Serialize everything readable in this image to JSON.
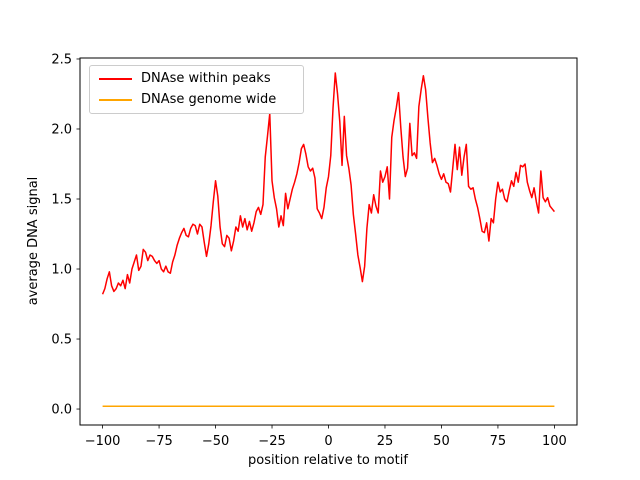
{
  "figure": {
    "background": "#ffffff",
    "axes_edge_color": "#000000",
    "legend_border_color": "#cccccc"
  },
  "chart_data": {
    "type": "line",
    "title": "",
    "xlabel": "position relative to motif",
    "ylabel": "average DNA signal",
    "xlim": [
      -110,
      110
    ],
    "ylim": [
      -0.114,
      2.507
    ],
    "grid": false,
    "legend_position": "upper-left",
    "xticks": [
      -100,
      -75,
      -50,
      -25,
      0,
      25,
      50,
      75,
      100
    ],
    "xtick_labels": [
      "−100",
      "−75",
      "−50",
      "−25",
      "0",
      "25",
      "50",
      "75",
      "100"
    ],
    "yticks": [
      0.0,
      0.5,
      1.0,
      1.5,
      2.0,
      2.5
    ],
    "ytick_labels": [
      "0.0",
      "0.5",
      "1.0",
      "1.5",
      "2.0",
      "2.5"
    ],
    "series": [
      {
        "name": "DNAse within peaks",
        "color": "#ff0000",
        "linewidth": 1.5,
        "x_start": -100,
        "x_step": 1,
        "y": [
          0.82,
          0.86,
          0.93,
          0.98,
          0.88,
          0.84,
          0.86,
          0.9,
          0.88,
          0.92,
          0.86,
          0.96,
          0.9,
          1.0,
          1.05,
          1.1,
          0.99,
          1.02,
          1.14,
          1.12,
          1.06,
          1.1,
          1.09,
          1.06,
          1.04,
          1.06,
          1.0,
          0.98,
          1.02,
          0.98,
          0.97,
          1.05,
          1.1,
          1.17,
          1.22,
          1.26,
          1.29,
          1.24,
          1.23,
          1.29,
          1.32,
          1.31,
          1.25,
          1.32,
          1.3,
          1.19,
          1.09,
          1.18,
          1.31,
          1.48,
          1.63,
          1.52,
          1.3,
          1.18,
          1.16,
          1.24,
          1.22,
          1.13,
          1.2,
          1.3,
          1.27,
          1.38,
          1.3,
          1.36,
          1.28,
          1.34,
          1.27,
          1.33,
          1.41,
          1.44,
          1.39,
          1.46,
          1.8,
          1.95,
          2.11,
          1.63,
          1.51,
          1.43,
          1.3,
          1.38,
          1.31,
          1.54,
          1.43,
          1.5,
          1.57,
          1.62,
          1.68,
          1.76,
          1.86,
          1.89,
          1.82,
          1.73,
          1.7,
          1.72,
          1.65,
          1.43,
          1.4,
          1.36,
          1.44,
          1.58,
          1.66,
          1.81,
          2.15,
          2.4,
          2.25,
          2.05,
          1.74,
          2.09,
          1.81,
          1.72,
          1.6,
          1.39,
          1.25,
          1.1,
          1.01,
          0.91,
          1.02,
          1.29,
          1.46,
          1.4,
          1.53,
          1.45,
          1.4,
          1.7,
          1.62,
          1.66,
          1.73,
          1.5,
          1.94,
          2.06,
          2.15,
          2.26,
          2.01,
          1.8,
          1.66,
          1.72,
          2.04,
          1.81,
          1.83,
          1.79,
          2.16,
          2.28,
          2.38,
          2.28,
          2.08,
          1.9,
          1.76,
          1.79,
          1.74,
          1.68,
          1.64,
          1.68,
          1.62,
          1.61,
          1.55,
          1.72,
          1.89,
          1.71,
          1.87,
          1.67,
          1.8,
          1.89,
          1.59,
          1.57,
          1.58,
          1.5,
          1.44,
          1.36,
          1.27,
          1.26,
          1.33,
          1.2,
          1.36,
          1.33,
          1.5,
          1.62,
          1.55,
          1.57,
          1.5,
          1.48,
          1.56,
          1.63,
          1.59,
          1.69,
          1.62,
          1.74,
          1.73,
          1.75,
          1.62,
          1.56,
          1.51,
          1.58,
          1.48,
          1.4,
          1.7,
          1.51,
          1.48,
          1.51,
          1.45,
          1.43,
          1.41
        ]
      },
      {
        "name": "DNAse genome wide",
        "color": "#ffa500",
        "linewidth": 1.5,
        "x": [
          -100,
          -75,
          -50,
          -25,
          0,
          25,
          50,
          75,
          100
        ],
        "y": [
          0.02,
          0.02,
          0.02,
          0.02,
          0.02,
          0.02,
          0.02,
          0.02,
          0.02
        ]
      }
    ]
  }
}
